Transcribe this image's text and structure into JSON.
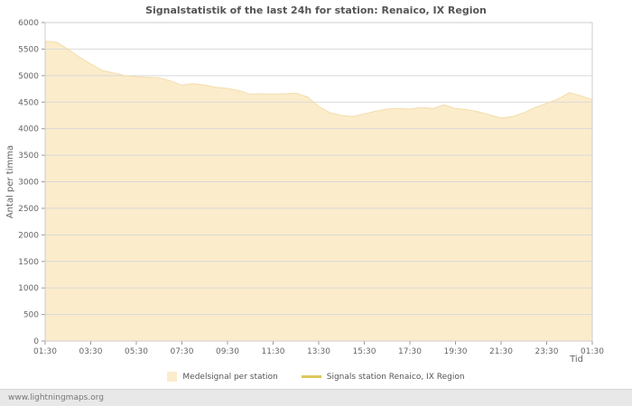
{
  "page": {
    "footer": "www.lightningmaps.org"
  },
  "colors": {
    "background": "#ffffff",
    "grid": "#d9d9d9",
    "border": "#cccccc",
    "tick": "#999999",
    "text": "#666666",
    "title": "#555555",
    "footer_bg": "#e8e8e8",
    "footer_text": "#777777",
    "area_fill": "#fbeccb",
    "area_edge": "#f3ddab",
    "station_line": "#ddc75f"
  },
  "chart_data": {
    "type": "area",
    "title": "Signalstatistik of the last 24h for station: Renaico, IX Region",
    "xlabel": "Tid",
    "ylabel": "Antal per timma",
    "ylim": [
      0,
      6000
    ],
    "grid": true,
    "legend_position": "bottom",
    "y_ticks": [
      0,
      500,
      1000,
      1500,
      2000,
      2500,
      3000,
      3500,
      4000,
      4500,
      5000,
      5500,
      6000
    ],
    "x_tick_labels": [
      "01:30",
      "03:30",
      "05:30",
      "07:30",
      "09:30",
      "11:30",
      "13:30",
      "15:30",
      "17:30",
      "19:30",
      "21:30",
      "23:30",
      "01:30"
    ],
    "x_tick_indices": [
      0,
      4,
      8,
      12,
      16,
      20,
      24,
      28,
      32,
      36,
      40,
      44,
      48
    ],
    "x": [
      "01:30",
      "02:00",
      "02:30",
      "03:00",
      "03:30",
      "04:00",
      "04:30",
      "05:00",
      "05:30",
      "06:00",
      "06:30",
      "07:00",
      "07:30",
      "08:00",
      "08:30",
      "09:00",
      "09:30",
      "10:00",
      "10:30",
      "11:00",
      "11:30",
      "12:00",
      "12:30",
      "13:00",
      "13:30",
      "14:00",
      "14:30",
      "15:00",
      "15:30",
      "16:00",
      "16:30",
      "17:00",
      "17:30",
      "18:00",
      "18:30",
      "19:00",
      "19:30",
      "20:00",
      "20:30",
      "21:00",
      "21:30",
      "22:00",
      "22:30",
      "23:00",
      "23:30",
      "00:00",
      "00:30",
      "01:00",
      "01:30"
    ],
    "series": [
      {
        "name": "Medelsignal per station",
        "style": "area",
        "color": "#fbeccb",
        "edge_color": "#f3ddab",
        "values": [
          5650,
          5630,
          5500,
          5350,
          5220,
          5100,
          5050,
          5000,
          4980,
          4970,
          4960,
          4900,
          4820,
          4850,
          4820,
          4780,
          4760,
          4720,
          4650,
          4660,
          4650,
          4660,
          4670,
          4600,
          4420,
          4300,
          4250,
          4230,
          4280,
          4330,
          4370,
          4380,
          4370,
          4400,
          4380,
          4450,
          4380,
          4360,
          4320,
          4260,
          4200,
          4230,
          4300,
          4400,
          4480,
          4560,
          4680,
          4620,
          4550
        ]
      },
      {
        "name": "Signals station Renaico, IX Region",
        "style": "line",
        "color": "#ddc75f",
        "values": []
      }
    ]
  }
}
